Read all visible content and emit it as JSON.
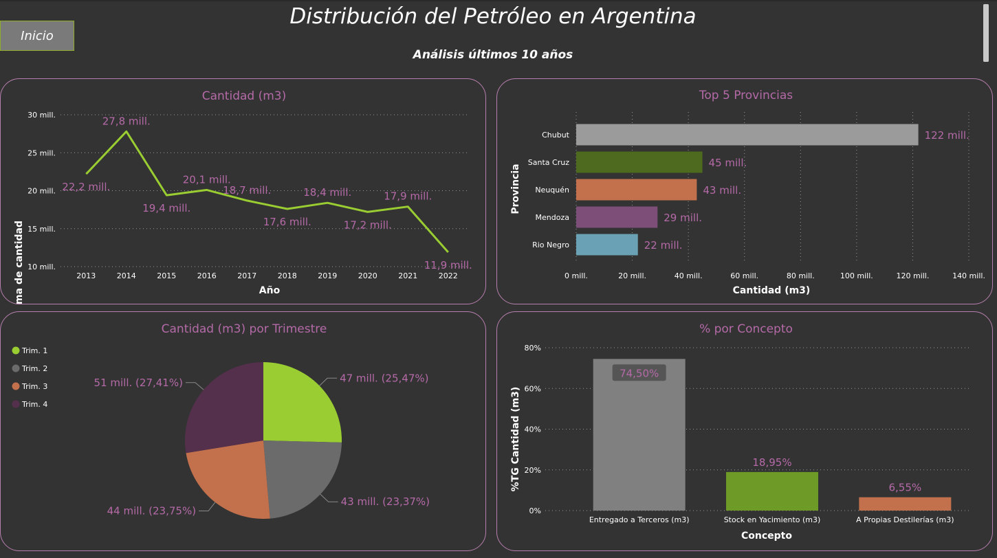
{
  "header": {
    "title": "Distribución del Petróleo en Argentina",
    "subtitle": "Análisis últimos 10 años",
    "home_label": "Inicio"
  },
  "colors": {
    "background": "#333333",
    "panel_border": "#b77fae",
    "title_pink": "#b56aa8",
    "lime": "#9acd32",
    "gray": "#808080"
  },
  "chart_data": [
    {
      "type": "line",
      "title": "Cantidad (m3)",
      "xlabel": "Año",
      "ylabel": "Suma de cantidad",
      "x": [
        "2013",
        "2014",
        "2015",
        "2016",
        "2017",
        "2018",
        "2019",
        "2020",
        "2021",
        "2022"
      ],
      "values": [
        22.2,
        27.8,
        19.4,
        20.1,
        18.7,
        17.6,
        18.4,
        17.2,
        17.9,
        11.9
      ],
      "data_labels": [
        "22,2 mill.",
        "27,8 mill.",
        "19,4 mill.",
        "20,1 mill.",
        "18,7 mill.",
        "17,6 mill.",
        "18,4 mill.",
        "17,2 mill.",
        "17,9 mill.",
        "11,9 mill."
      ],
      "ylim": [
        10,
        30
      ],
      "yticks": [
        10,
        15,
        20,
        25,
        30
      ],
      "ytick_labels": [
        "10 mill.",
        "15 mill.",
        "20 mill.",
        "25 mill.",
        "30 mill."
      ],
      "color": "#9acd32",
      "grid": true
    },
    {
      "type": "bar",
      "orientation": "horizontal",
      "title": "Top 5 Provincias",
      "xlabel": "Cantidad (m3)",
      "ylabel": "Provincia",
      "categories": [
        "Chubut",
        "Santa Cruz",
        "Neuquén",
        "Mendoza",
        "Rio Negro"
      ],
      "values": [
        122,
        45,
        43,
        29,
        22
      ],
      "data_labels": [
        "122 mill.",
        "45 mill.",
        "43 mill.",
        "29 mill.",
        "22 mill."
      ],
      "colors": [
        "#9b9b9b",
        "#4d6a1e",
        "#c2714c",
        "#7d4e78",
        "#6aa1b4"
      ],
      "xlim": [
        0,
        140
      ],
      "xticks": [
        0,
        20,
        40,
        60,
        80,
        100,
        120,
        140
      ],
      "xtick_labels": [
        "0 mill.",
        "20 mill.",
        "40 mill.",
        "60 mill.",
        "80 mill.",
        "100 mill.",
        "120 mill.",
        "140 mill."
      ],
      "grid": true
    },
    {
      "type": "pie",
      "title": "Cantidad (m3) por Trimestre",
      "categories": [
        "Trim. 1",
        "Trim. 2",
        "Trim. 3",
        "Trim. 4"
      ],
      "values": [
        47,
        43,
        44,
        51
      ],
      "percents": [
        25.47,
        23.37,
        23.75,
        27.41
      ],
      "data_labels": [
        "47 mill. (25,47%)",
        "43 mill. (23,37%)",
        "44 mill. (23,75%)",
        "51 mill. (27,41%)"
      ],
      "colors": [
        "#9acd32",
        "#6b6b6b",
        "#c2714c",
        "#55304d"
      ],
      "legend": "top-left"
    },
    {
      "type": "bar",
      "title": "% por Concepto",
      "xlabel": "Concepto",
      "ylabel": "%TG Cantidad (m3)",
      "categories": [
        "Entregado a Terceros (m3)",
        "Stock en Yacimiento (m3)",
        "A Propias Destilerías (m3)"
      ],
      "values": [
        74.5,
        18.95,
        6.55
      ],
      "data_labels": [
        "74,50%",
        "18,95%",
        "6,55%"
      ],
      "colors": [
        "#808080",
        "#6e9a28",
        "#c2714c"
      ],
      "ylim": [
        0,
        80
      ],
      "yticks": [
        0,
        20,
        40,
        60,
        80
      ],
      "ytick_labels": [
        "0%",
        "20%",
        "40%",
        "60%",
        "80%"
      ],
      "grid": true
    }
  ]
}
